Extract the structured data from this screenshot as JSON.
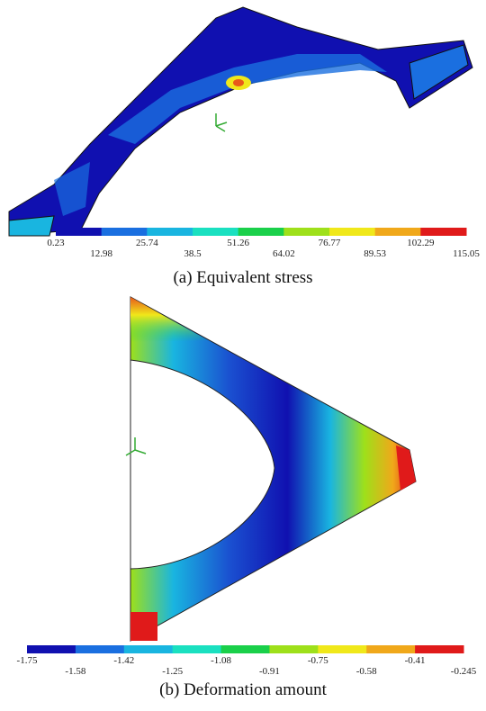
{
  "panels": [
    {
      "caption": "(a) Equivalent stress",
      "legend_labels": [
        "0.23",
        "12.98",
        "25.74",
        "38.5",
        "51.26",
        "64.02",
        "76.77",
        "89.53",
        "102.29",
        "115.05"
      ]
    },
    {
      "caption": "(b)  Deformation amount",
      "legend_labels": [
        "-1.75",
        "-1.58",
        "-1.42",
        "-1.25",
        "-1.08",
        "-0.91",
        "-0.75",
        "-0.58",
        "-0.41",
        "-0.245"
      ]
    }
  ]
}
